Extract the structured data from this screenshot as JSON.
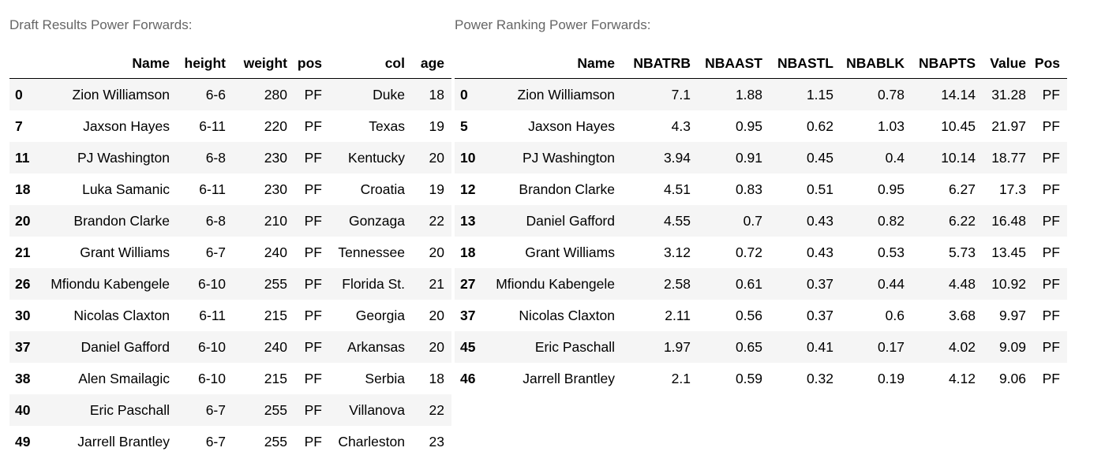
{
  "draft": {
    "caption": "Draft Results Power Forwards:",
    "columns": [
      "",
      "Name",
      "height",
      "weight",
      "pos",
      "col",
      "age"
    ],
    "rows": [
      [
        "0",
        "Zion Williamson",
        "6-6",
        "280",
        "PF",
        "Duke",
        "18"
      ],
      [
        "7",
        "Jaxson Hayes",
        "6-11",
        "220",
        "PF",
        "Texas",
        "19"
      ],
      [
        "11",
        "PJ Washington",
        "6-8",
        "230",
        "PF",
        "Kentucky",
        "20"
      ],
      [
        "18",
        "Luka Samanic",
        "6-11",
        "230",
        "PF",
        "Croatia",
        "19"
      ],
      [
        "20",
        "Brandon Clarke",
        "6-8",
        "210",
        "PF",
        "Gonzaga",
        "22"
      ],
      [
        "21",
        "Grant Williams",
        "6-7",
        "240",
        "PF",
        "Tennessee",
        "20"
      ],
      [
        "26",
        "Mfiondu Kabengele",
        "6-10",
        "255",
        "PF",
        "Florida St.",
        "21"
      ],
      [
        "30",
        "Nicolas Claxton",
        "6-11",
        "215",
        "PF",
        "Georgia",
        "20"
      ],
      [
        "37",
        "Daniel Gafford",
        "6-10",
        "240",
        "PF",
        "Arkansas",
        "20"
      ],
      [
        "38",
        "Alen Smailagic",
        "6-10",
        "215",
        "PF",
        "Serbia",
        "18"
      ],
      [
        "40",
        "Eric Paschall",
        "6-7",
        "255",
        "PF",
        "Villanova",
        "22"
      ],
      [
        "49",
        "Jarrell Brantley",
        "6-7",
        "255",
        "PF",
        "Charleston",
        "23"
      ]
    ]
  },
  "ranking": {
    "caption": "Power Ranking Power Forwards:",
    "columns": [
      "",
      "Name",
      "NBATRB",
      "NBAAST",
      "NBASTL",
      "NBABLK",
      "NBAPTS",
      "Value",
      "Pos"
    ],
    "rows": [
      [
        "0",
        "Zion Williamson",
        "7.1",
        "1.88",
        "1.15",
        "0.78",
        "14.14",
        "31.28",
        "PF"
      ],
      [
        "5",
        "Jaxson Hayes",
        "4.3",
        "0.95",
        "0.62",
        "1.03",
        "10.45",
        "21.97",
        "PF"
      ],
      [
        "10",
        "PJ Washington",
        "3.94",
        "0.91",
        "0.45",
        "0.4",
        "10.14",
        "18.77",
        "PF"
      ],
      [
        "12",
        "Brandon Clarke",
        "4.51",
        "0.83",
        "0.51",
        "0.95",
        "6.27",
        "17.3",
        "PF"
      ],
      [
        "13",
        "Daniel Gafford",
        "4.55",
        "0.7",
        "0.43",
        "0.82",
        "6.22",
        "16.48",
        "PF"
      ],
      [
        "18",
        "Grant Williams",
        "3.12",
        "0.72",
        "0.43",
        "0.53",
        "5.73",
        "13.45",
        "PF"
      ],
      [
        "27",
        "Mfiondu Kabengele",
        "2.58",
        "0.61",
        "0.37",
        "0.44",
        "4.48",
        "10.92",
        "PF"
      ],
      [
        "37",
        "Nicolas Claxton",
        "2.11",
        "0.56",
        "0.37",
        "0.6",
        "3.68",
        "9.97",
        "PF"
      ],
      [
        "45",
        "Eric Paschall",
        "1.97",
        "0.65",
        "0.41",
        "0.17",
        "4.02",
        "9.09",
        "PF"
      ],
      [
        "46",
        "Jarrell Brantley",
        "2.1",
        "0.59",
        "0.32",
        "0.19",
        "4.12",
        "9.06",
        "PF"
      ]
    ]
  }
}
